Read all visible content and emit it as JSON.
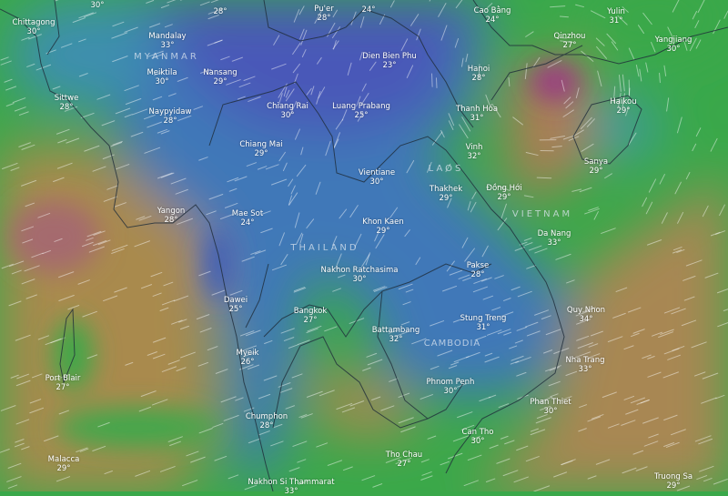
{
  "map": {
    "layer": "temperature-wind",
    "colors": {
      "cool": "#3b5bb8",
      "mid": "#3aa84a",
      "warm": "#b48a4e",
      "hot": "#9a4a7a"
    },
    "countries": [
      "MYANMAR",
      "LAOS",
      "THAILAND",
      "VIETNAM",
      "CAMBODIA"
    ],
    "cities": [
      {
        "name": "",
        "temp": "30°"
      },
      {
        "name": "Chittagong",
        "temp": "30°"
      },
      {
        "name": "Mandalay",
        "temp": "33°"
      },
      {
        "name": "Meiktila",
        "temp": "30°"
      },
      {
        "name": "Nansang",
        "temp": "29°"
      },
      {
        "name": "Sittwe",
        "temp": "28°"
      },
      {
        "name": "Naypyidaw",
        "temp": "28°"
      },
      {
        "name": "",
        "temp": "28°"
      },
      {
        "name": "Pu'er",
        "temp": "28°"
      },
      {
        "name": "",
        "temp": "24°"
      },
      {
        "name": "Dien Bien Phu",
        "temp": "23°"
      },
      {
        "name": "Chiang Rai",
        "temp": "30°"
      },
      {
        "name": "Luang Prabang",
        "temp": "25°"
      },
      {
        "name": "Chiang Mai",
        "temp": "29°"
      },
      {
        "name": "Cao Bằng",
        "temp": "24°"
      },
      {
        "name": "Yulin",
        "temp": "31°"
      },
      {
        "name": "Qinzhou",
        "temp": "27°"
      },
      {
        "name": "Yangjiang",
        "temp": "30°"
      },
      {
        "name": "Hanoi",
        "temp": "28°"
      },
      {
        "name": "Haikou",
        "temp": "29°"
      },
      {
        "name": "Thanh Hóa",
        "temp": "31°"
      },
      {
        "name": "Vinh",
        "temp": "32°"
      },
      {
        "name": "Vientiane",
        "temp": "30°"
      },
      {
        "name": "Sanya",
        "temp": "29°"
      },
      {
        "name": "Thakhek",
        "temp": "29°"
      },
      {
        "name": "Đồng Hới",
        "temp": "29°"
      },
      {
        "name": "Khon Kaen",
        "temp": "29°"
      },
      {
        "name": "Da Nang",
        "temp": "33°"
      },
      {
        "name": "Yangon",
        "temp": "28°"
      },
      {
        "name": "Mae Sot",
        "temp": "24°"
      },
      {
        "name": "Nakhon Ratchasima",
        "temp": "30°"
      },
      {
        "name": "Pakse",
        "temp": "28°"
      },
      {
        "name": "Dawei",
        "temp": "25°"
      },
      {
        "name": "Bangkok",
        "temp": "27°"
      },
      {
        "name": "Stung Treng",
        "temp": "31°"
      },
      {
        "name": "Quy Nhon",
        "temp": "34°"
      },
      {
        "name": "Battambang",
        "temp": "32°"
      },
      {
        "name": "Myeik",
        "temp": "26°"
      },
      {
        "name": "Port Blair",
        "temp": "27°"
      },
      {
        "name": "Nha Trang",
        "temp": "33°"
      },
      {
        "name": "Phnom Penh",
        "temp": "30°"
      },
      {
        "name": "Phan Thiet",
        "temp": "30°"
      },
      {
        "name": "Chumphon",
        "temp": "28°"
      },
      {
        "name": "Can Tho",
        "temp": "30°"
      },
      {
        "name": "Tho Chau",
        "temp": "27°"
      },
      {
        "name": "Malacca",
        "temp": "29°"
      },
      {
        "name": "Truong Sa",
        "temp": "29°"
      },
      {
        "name": "Nakhon Si Thammarat",
        "temp": "33°"
      }
    ]
  }
}
